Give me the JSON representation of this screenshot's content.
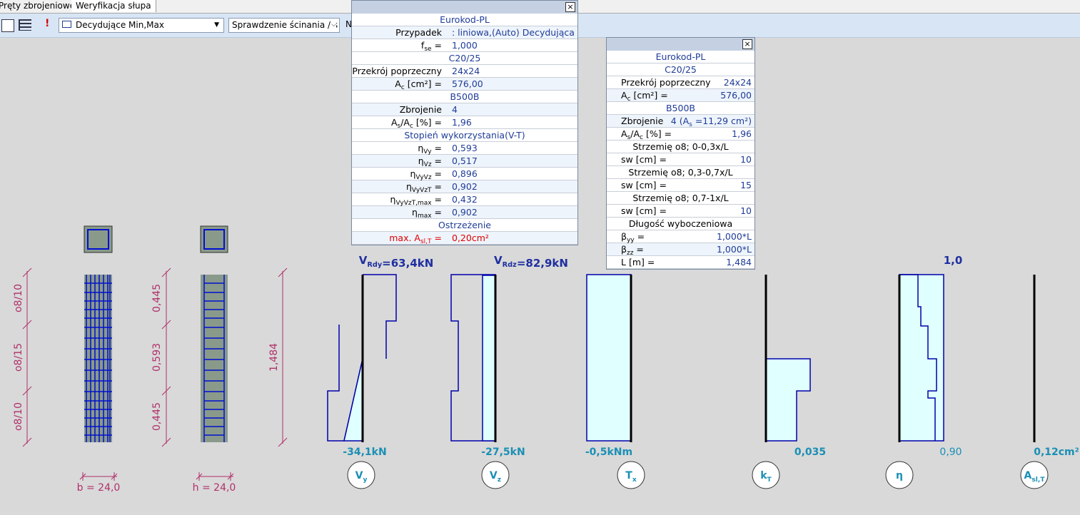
{
  "tabs": [
    "Pręty zbrojeniowe",
    "Weryfikacja słupa"
  ],
  "toolbar": {
    "dropdowns": [
      "Decydujące Min,Max",
      "Sprawdzenie ścinania / s"
    ],
    "cut_text": "N",
    "alert": "!"
  },
  "panels": [
    {
      "rows": [
        {
          "header": "Eurokod-PL"
        },
        {
          "label": [
            "Przypadek"
          ],
          "value": [
            ": liniowa,(Auto) Decydująca"
          ]
        },
        {
          "label": [
            "f",
            {
              "text": "se",
              "sub": true
            },
            " ="
          ],
          "value": [
            "1,000"
          ]
        },
        {
          "header": "C20/25"
        },
        {
          "label": [
            "Przekrój poprzeczny"
          ],
          "value": [
            "24x24"
          ]
        },
        {
          "label": [
            "A",
            {
              "text": "c",
              "sub": true
            },
            " [cm²] ="
          ],
          "value": [
            "576,00"
          ]
        },
        {
          "header": "B500B"
        },
        {
          "label": [
            "Zbrojenie"
          ],
          "value": [
            "4"
          ]
        },
        {
          "label": [
            "A",
            {
              "text": "s",
              "sub": true
            },
            "/A",
            {
              "text": "c",
              "sub": true
            },
            " [%] ="
          ],
          "value": [
            "1,96"
          ]
        },
        {
          "header": "Stopień wykorzystania(V-T)"
        },
        {
          "label": [
            "η",
            {
              "text": "Vy",
              "sub": true
            },
            " ="
          ],
          "value": [
            "0,593"
          ]
        },
        {
          "label": [
            "η",
            {
              "text": "Vz",
              "sub": true
            },
            " ="
          ],
          "value": [
            "0,517"
          ]
        },
        {
          "label": [
            "η",
            {
              "text": "VyVz",
              "sub": true
            },
            " ="
          ],
          "value": [
            "0,896"
          ]
        },
        {
          "label": [
            "η",
            {
              "text": "VyVzT",
              "sub": true
            },
            " ="
          ],
          "value": [
            "0,902"
          ]
        },
        {
          "label": [
            "η",
            {
              "text": "VyVzT,max",
              "sub": true
            },
            " ="
          ],
          "value": [
            "0,432"
          ]
        },
        {
          "label": [
            "η",
            {
              "text": "max",
              "sub": true
            },
            " ="
          ],
          "value": [
            "0,902"
          ]
        },
        {
          "header": "Ostrzeżenie"
        },
        {
          "label": [
            "max. A",
            {
              "text": "sl,T",
              "sub": true
            },
            " ="
          ],
          "value": [
            "0,20cm²"
          ],
          "warn": true
        }
      ]
    },
    {
      "rows": [
        {
          "header": "Eurokod-PL"
        },
        {
          "header": "C20/25"
        },
        {
          "label": [
            "Przekrój poprzeczny"
          ],
          "value": [
            "24x24"
          ]
        },
        {
          "label": [
            "A",
            {
              "text": "c",
              "sub": true
            },
            " [cm²] ="
          ],
          "value": [
            "576,00"
          ]
        },
        {
          "header": "B500B"
        },
        {
          "label": [
            "Zbrojenie"
          ],
          "value": [
            "4 (A",
            {
              "text": "s",
              "sub": true
            },
            " =11,29 cm²)"
          ]
        },
        {
          "label": [
            "A",
            {
              "text": "s",
              "sub": true
            },
            "/A",
            {
              "text": "c",
              "sub": true
            },
            " [%] ="
          ],
          "value": [
            "1,96"
          ]
        },
        {
          "header": "Strzemię o8; 0-0,3x/L",
          "note": true
        },
        {
          "label": [
            "sw [cm] ="
          ],
          "value": [
            "10"
          ]
        },
        {
          "header": "Strzemię o8; 0,3-0,7x/L",
          "note": true
        },
        {
          "label": [
            "sw [cm] ="
          ],
          "value": [
            "15"
          ]
        },
        {
          "header": "Strzemię o8; 0,7-1x/L",
          "note": true
        },
        {
          "label": [
            "sw [cm] ="
          ],
          "value": [
            "10"
          ]
        },
        {
          "header": "Długość wyboczeniowa",
          "note": true
        },
        {
          "label": [
            "β",
            {
              "text": "yy",
              "sub": true
            },
            " ="
          ],
          "value": [
            "1,000*L"
          ]
        },
        {
          "label": [
            "β",
            {
              "text": "zz",
              "sub": true
            },
            " ="
          ],
          "value": [
            "1,000*L"
          ]
        },
        {
          "label": [
            "L [m] ="
          ],
          "value": [
            "1,484"
          ]
        }
      ]
    }
  ],
  "diagram": {
    "bar_labels": [
      "o8/10",
      "o8/15",
      "o8/10"
    ],
    "lengths": [
      "0,445",
      "0,593",
      "0,445"
    ],
    "total": "1,484",
    "b": "b = 24,0",
    "h": "h = 24,0",
    "top_labels": [
      [
        "V",
        {
          "text": "Rdy",
          "sub": true
        },
        "=63,4kN"
      ],
      [
        "V",
        {
          "text": "Rdz",
          "sub": true
        },
        "=82,9kN"
      ],
      [
        "1,0"
      ]
    ],
    "bottom_labels": [
      [
        "-34,1kN"
      ],
      [
        "-27,5kN"
      ],
      [
        "-0,5kNm"
      ],
      [
        "0,035"
      ],
      [
        "0,90"
      ],
      [
        "0,12cm²"
      ]
    ],
    "symbols": [
      [
        "V",
        {
          "text": "y",
          "sub": true
        }
      ],
      [
        "V",
        {
          "text": "z",
          "sub": true
        }
      ],
      [
        "T",
        {
          "text": "x",
          "sub": true
        }
      ],
      [
        "k",
        {
          "text": "T",
          "sub": true
        }
      ],
      [
        "η"
      ],
      [
        "A",
        {
          "text": "sl,T",
          "sub": true
        }
      ]
    ]
  }
}
